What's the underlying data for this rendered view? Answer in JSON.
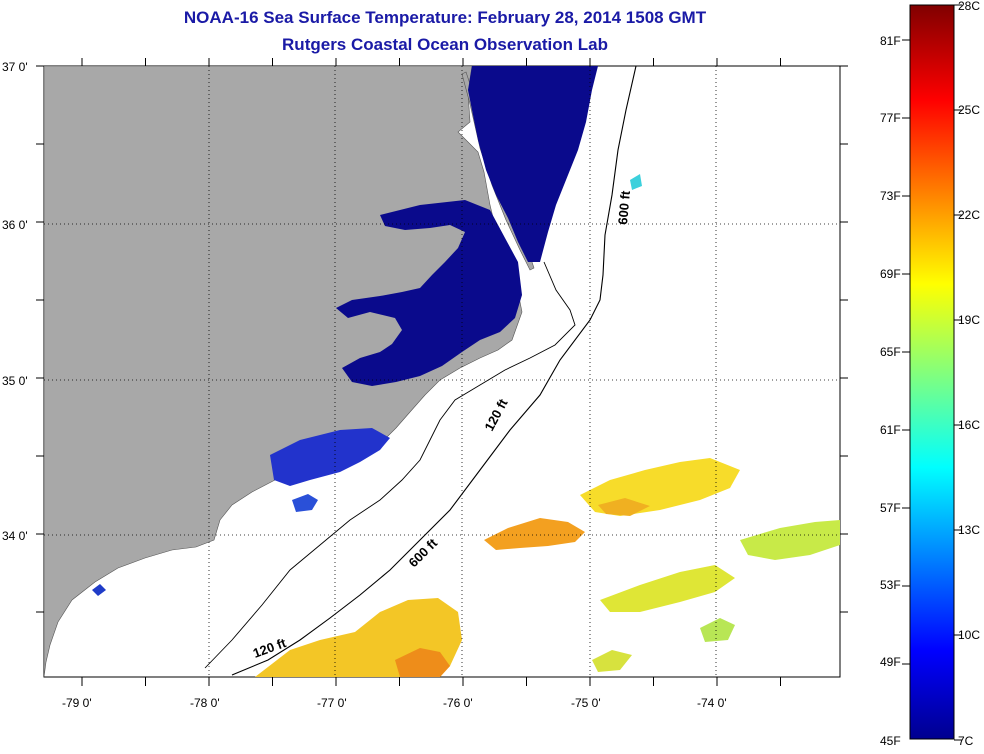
{
  "header": {
    "title": "NOAA-16 Sea Surface Temperature:  February 28, 2014 1508 GMT",
    "subtitle": "Rutgers Coastal Ocean Observation Lab"
  },
  "map": {
    "lat_labels": [
      "37 0'",
      "36 0'",
      "35 0'",
      "34 0'"
    ],
    "lon_labels": [
      "-79 0'",
      "-78 0'",
      "-77 0'",
      "-76 0'",
      "-75 0'",
      "-74 0'"
    ],
    "contours": {
      "shallow": "120 ft",
      "deep": "600 ft"
    }
  },
  "legend": {
    "f_labels": [
      "81F",
      "77F",
      "73F",
      "69F",
      "65F",
      "61F",
      "57F",
      "53F",
      "49F",
      "45F"
    ],
    "c_labels": [
      "28C",
      "25C",
      "22C",
      "19C",
      "16C",
      "13C",
      "10C",
      "7C"
    ]
  },
  "colors": {
    "land": "#a8a8a8",
    "cold_water": "#0a0a8c",
    "title": "#1a1aa6"
  }
}
